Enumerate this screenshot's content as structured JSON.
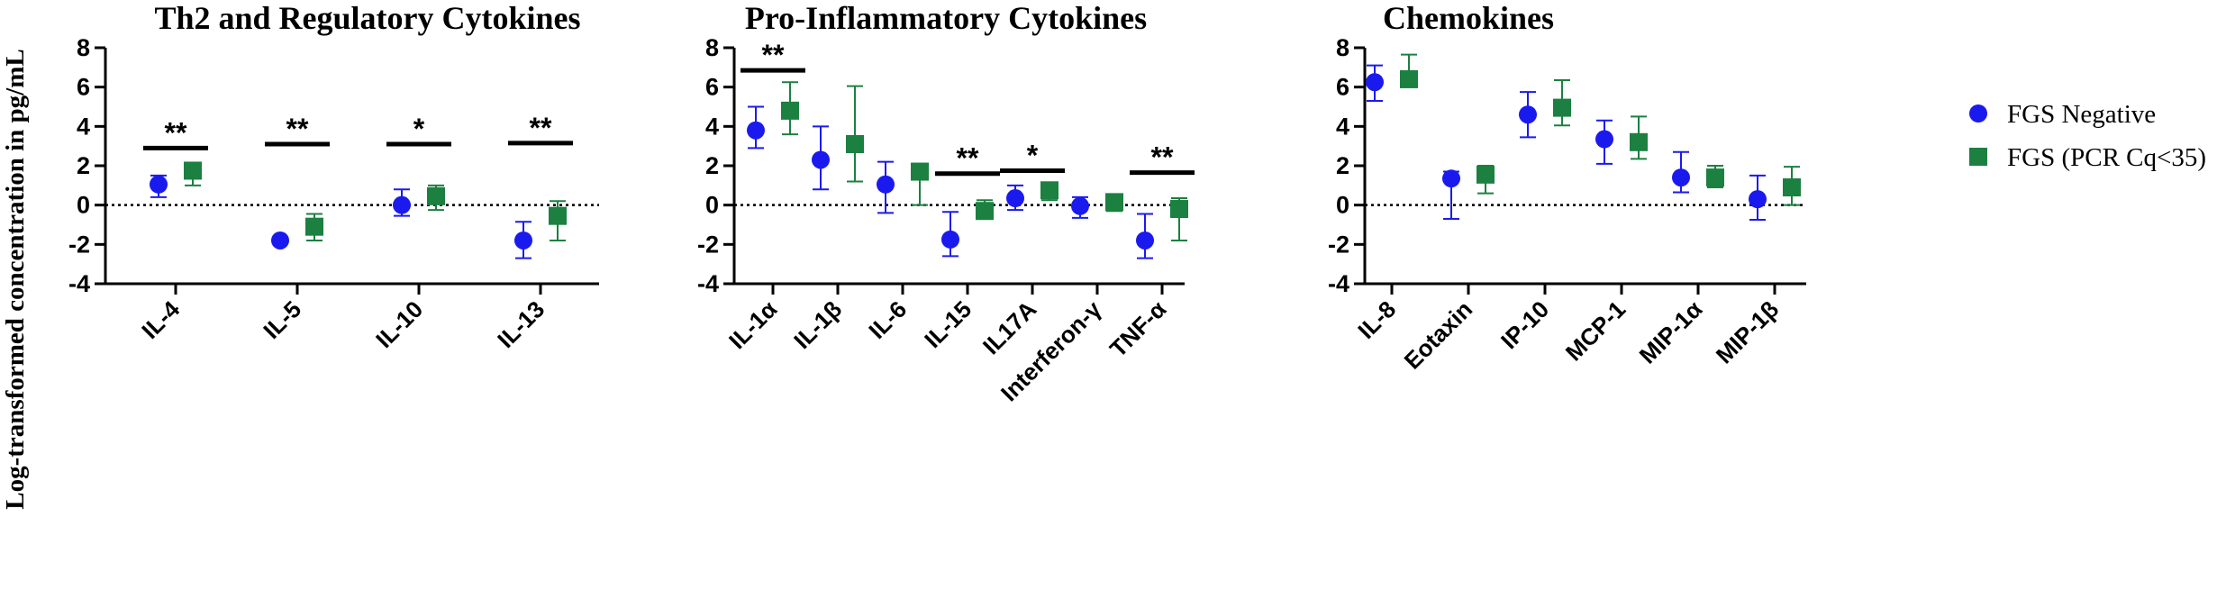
{
  "y_axis_label": "Log-transformed concentration in pg/mL",
  "legend": [
    {
      "label": "FGS Negative",
      "color": "#1a1aee",
      "marker": "circle"
    },
    {
      "label": "FGS (PCR Cq<35)",
      "color": "#1b8040",
      "marker": "square"
    }
  ],
  "chart_data": [
    {
      "type": "scatter",
      "title": "Th2 and Regulatory Cytokines",
      "ylim": [
        -4,
        8
      ],
      "yticks": [
        -4,
        -2,
        0,
        2,
        4,
        6,
        8
      ],
      "reference_line": 0,
      "categories": [
        "IL-4",
        "IL-5",
        "IL-10",
        "IL-13"
      ],
      "series": [
        {
          "name": "FGS Negative",
          "values": [
            1.05,
            -1.8,
            0.0,
            -1.8
          ],
          "error_low": [
            0.4,
            -1.8,
            -0.55,
            -2.7
          ],
          "error_high": [
            1.5,
            -1.8,
            0.8,
            -0.85
          ]
        },
        {
          "name": "FGS (PCR Cq<35)",
          "values": [
            1.75,
            -1.1,
            0.45,
            -0.55
          ],
          "error_low": [
            1.0,
            -1.8,
            -0.25,
            -1.8
          ],
          "error_high": [
            1.75,
            -0.45,
            1.0,
            0.2
          ]
        }
      ],
      "significance": [
        "**",
        "**",
        "*",
        "**"
      ],
      "significance_y": [
        2.9,
        3.1,
        3.1,
        3.15
      ]
    },
    {
      "type": "scatter",
      "title": "Pro-Inflammatory Cytokines",
      "ylim": [
        -4,
        8
      ],
      "yticks": [
        -4,
        -2,
        0,
        2,
        4,
        6,
        8
      ],
      "reference_line": 0,
      "categories": [
        "IL-1α",
        "IL-1β",
        "IL-6",
        "IL-15",
        "IL17A",
        "Interferon-γ",
        "TNF-α"
      ],
      "series": [
        {
          "name": "FGS Negative",
          "values": [
            3.8,
            2.3,
            1.05,
            -1.75,
            0.35,
            -0.05,
            -1.8
          ],
          "error_low": [
            2.9,
            0.8,
            -0.4,
            -2.6,
            -0.25,
            -0.65,
            -2.7
          ],
          "error_high": [
            5.0,
            4.0,
            2.2,
            -0.35,
            1.0,
            0.4,
            -0.45
          ]
        },
        {
          "name": "FGS (PCR Cq<35)",
          "values": [
            4.8,
            3.1,
            1.7,
            -0.3,
            0.75,
            0.15,
            -0.2
          ],
          "error_low": [
            3.6,
            1.2,
            0.0,
            -0.65,
            0.25,
            -0.3,
            -1.8
          ],
          "error_high": [
            6.25,
            6.05,
            2.1,
            0.25,
            1.15,
            0.55,
            0.35
          ]
        }
      ],
      "significance": [
        "**",
        "",
        "",
        "**",
        "*",
        "",
        "**"
      ],
      "significance_y": [
        6.85,
        null,
        null,
        1.6,
        1.75,
        null,
        1.65
      ]
    },
    {
      "type": "scatter",
      "title": "Chemokines",
      "ylim": [
        -4,
        8
      ],
      "yticks": [
        -4,
        -2,
        0,
        2,
        4,
        6,
        8
      ],
      "reference_line": 0,
      "categories": [
        "IL-8",
        "Eotaxin",
        "IP-10",
        "MCP-1",
        "MIP-1α",
        "MIP-1β"
      ],
      "series": [
        {
          "name": "FGS Negative",
          "values": [
            6.25,
            1.35,
            4.6,
            3.35,
            1.4,
            0.3
          ],
          "error_low": [
            5.3,
            -0.7,
            3.45,
            2.1,
            0.65,
            -0.75
          ],
          "error_high": [
            7.1,
            1.7,
            5.75,
            4.3,
            2.7,
            1.5
          ]
        },
        {
          "name": "FGS (PCR Cq<35)",
          "values": [
            6.4,
            1.55,
            4.95,
            3.2,
            1.4,
            0.9
          ],
          "error_low": [
            6.05,
            0.6,
            4.05,
            2.35,
            0.9,
            0.0
          ],
          "error_high": [
            7.65,
            2.0,
            6.35,
            4.5,
            2.0,
            1.95
          ]
        }
      ],
      "significance": [
        "",
        "",
        "",
        "",
        "",
        ""
      ],
      "significance_y": [
        null,
        null,
        null,
        null,
        null,
        null
      ]
    }
  ]
}
